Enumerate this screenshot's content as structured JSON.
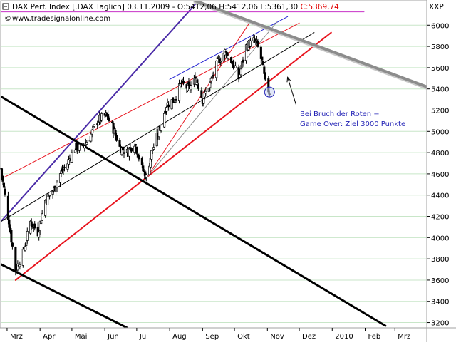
{
  "header": {
    "title": "DAX Perf. Index [.DAX  Täglich] 03.11.2009 - ",
    "open": "O:5412,06",
    "high": "H:5412,06",
    "low": "L:5361,30",
    "close": "C:5369,74",
    "url": "www.tradesignalonline.com",
    "corner_label": "XXP"
  },
  "annotation": {
    "line1": "Bei Bruch der Roten =",
    "line2": "Game Over: Ziel 3000 Punkte"
  },
  "colors": {
    "background": "#ffffff",
    "grid": "#c8e6c8",
    "bull": "#ffffff",
    "bear": "#000000",
    "red_channel": "#e8141e",
    "purple": "#4b2ca8",
    "blue": "#2323d2",
    "magenta": "#c832c8",
    "grey_trend": "#8c8c8c",
    "annotation": "#1e1eb4",
    "ohlc_open": "#000000",
    "ohlc_high": "#000000",
    "ohlc_low": "#000000",
    "ohlc_close": "#e00000"
  },
  "chart_data": {
    "type": "candlestick",
    "title": "DAX Perf. Index [.DAX Täglich] 03.11.2009",
    "xlabel": "",
    "ylabel": "",
    "x_start": "2009-02-23",
    "x_end": "2010-03-31",
    "months": [
      {
        "label": "Mrz",
        "date": "2009-03-01"
      },
      {
        "label": "Apr",
        "date": "2009-04-01"
      },
      {
        "label": "Mai",
        "date": "2009-05-01"
      },
      {
        "label": "Jun",
        "date": "2009-06-01"
      },
      {
        "label": "Jul",
        "date": "2009-07-01"
      },
      {
        "label": "Aug",
        "date": "2009-08-01"
      },
      {
        "label": "Sep",
        "date": "2009-09-01"
      },
      {
        "label": "Okt",
        "date": "2009-10-01"
      },
      {
        "label": "Nov",
        "date": "2009-11-01"
      },
      {
        "label": "Dez",
        "date": "2009-12-01"
      },
      {
        "label": "2010",
        "date": "2010-01-01"
      },
      {
        "label": "Feb",
        "date": "2010-02-01"
      },
      {
        "label": "Mrz",
        "date": "2010-03-01"
      }
    ],
    "ylim": [
      3150,
      6230
    ],
    "yticks": [
      3200,
      3400,
      3600,
      3800,
      4000,
      4200,
      4400,
      4600,
      4800,
      5000,
      5200,
      5400,
      5600,
      5800,
      6000
    ],
    "ytick_labels": [
      "3200",
      "3400",
      "3600",
      "3800",
      "4000",
      "4200",
      "4400",
      "4600",
      "4800",
      "5000",
      "5200",
      "5400",
      "5600",
      "5800",
      "6000"
    ],
    "grid": true,
    "price_path": [
      {
        "date": "2009-02-23",
        "close": 4650
      },
      {
        "date": "2009-03-02",
        "close": 4200
      },
      {
        "date": "2009-03-09",
        "close": 3700
      },
      {
        "date": "2009-03-16",
        "close": 3850
      },
      {
        "date": "2009-03-23",
        "close": 4150
      },
      {
        "date": "2009-03-30",
        "close": 4050
      },
      {
        "date": "2009-04-06",
        "close": 4350
      },
      {
        "date": "2009-04-14",
        "close": 4450
      },
      {
        "date": "2009-04-20",
        "close": 4600
      },
      {
        "date": "2009-04-27",
        "close": 4700
      },
      {
        "date": "2009-05-04",
        "close": 4850
      },
      {
        "date": "2009-05-11",
        "close": 4850
      },
      {
        "date": "2009-05-18",
        "close": 4950
      },
      {
        "date": "2009-05-25",
        "close": 5100
      },
      {
        "date": "2009-06-02",
        "close": 5150
      },
      {
        "date": "2009-06-08",
        "close": 5050
      },
      {
        "date": "2009-06-15",
        "close": 4850
      },
      {
        "date": "2009-06-22",
        "close": 4800
      },
      {
        "date": "2009-06-29",
        "close": 4900
      },
      {
        "date": "2009-07-06",
        "close": 4650
      },
      {
        "date": "2009-07-10",
        "close": 4570
      },
      {
        "date": "2009-07-15",
        "close": 4800
      },
      {
        "date": "2009-07-22",
        "close": 5000
      },
      {
        "date": "2009-07-29",
        "close": 5250
      },
      {
        "date": "2009-08-05",
        "close": 5300
      },
      {
        "date": "2009-08-12",
        "close": 5450
      },
      {
        "date": "2009-08-19",
        "close": 5400
      },
      {
        "date": "2009-08-26",
        "close": 5500
      },
      {
        "date": "2009-09-01",
        "close": 5300
      },
      {
        "date": "2009-09-08",
        "close": 5450
      },
      {
        "date": "2009-09-15",
        "close": 5650
      },
      {
        "date": "2009-09-22",
        "close": 5750
      },
      {
        "date": "2009-09-29",
        "close": 5650
      },
      {
        "date": "2009-10-05",
        "close": 5500
      },
      {
        "date": "2009-10-12",
        "close": 5800
      },
      {
        "date": "2009-10-19",
        "close": 5850
      },
      {
        "date": "2009-10-22",
        "close": 5820
      },
      {
        "date": "2009-10-27",
        "close": 5650
      },
      {
        "date": "2009-10-30",
        "close": 5450
      },
      {
        "date": "2009-11-03",
        "close": 5370
      }
    ],
    "trendlines": [
      {
        "color": "red_channel",
        "width": 2,
        "from": {
          "date": "2009-03-09",
          "price": 3600
        },
        "to": {
          "date": "2009-12-31",
          "price": 5930
        }
      },
      {
        "color": "red_channel",
        "width": 1,
        "from": {
          "date": "2009-02-23",
          "price": 4550
        },
        "to": {
          "date": "2009-12-01",
          "price": 6020
        }
      },
      {
        "color": "purple",
        "width": 2,
        "from": {
          "date": "2009-02-23",
          "price": 4150
        },
        "to": {
          "date": "2009-08-28",
          "price": 6230
        }
      },
      {
        "color": "blue",
        "width": 1,
        "from": {
          "date": "2009-08-01",
          "price": 5490
        },
        "to": {
          "date": "2009-11-20",
          "price": 6080
        }
      },
      {
        "color": "bear",
        "width": 1,
        "from": {
          "date": "2009-02-23",
          "price": 4150
        },
        "to": {
          "date": "2009-12-15",
          "price": 5930
        }
      },
      {
        "color": "red_channel",
        "width": 1,
        "from": {
          "date": "2009-07-10",
          "price": 4560
        },
        "to": {
          "date": "2009-10-15",
          "price": 6020
        }
      },
      {
        "color": "grey_trend",
        "width": 1,
        "from": {
          "date": "2009-07-10",
          "price": 4560
        },
        "to": {
          "date": "2009-11-10",
          "price": 6030
        }
      },
      {
        "color": "magenta",
        "width": 1,
        "from": {
          "date": "2009-02-23",
          "price": 6125
        },
        "to": {
          "date": "2010-01-31",
          "price": 6125
        }
      },
      {
        "color": "grey_trend",
        "width": 4,
        "from": {
          "date": "2009-08-25",
          "price": 6230
        },
        "to": {
          "date": "2010-03-31",
          "price": 5420
        }
      },
      {
        "color": "bear",
        "width": 3,
        "from": {
          "date": "2009-02-23",
          "price": 5330
        },
        "to": {
          "date": "2010-02-20",
          "price": 3170
        }
      },
      {
        "color": "bear",
        "width": 3,
        "from": {
          "date": "2009-02-23",
          "price": 3750
        },
        "to": {
          "date": "2009-06-22",
          "price": 3150
        }
      }
    ],
    "marker": {
      "date": "2009-11-03",
      "price": 5370
    },
    "arrow": {
      "from": {
        "date": "2009-11-28",
        "price": 5250
      },
      "to": {
        "date": "2009-11-20",
        "price": 5510
      }
    }
  }
}
